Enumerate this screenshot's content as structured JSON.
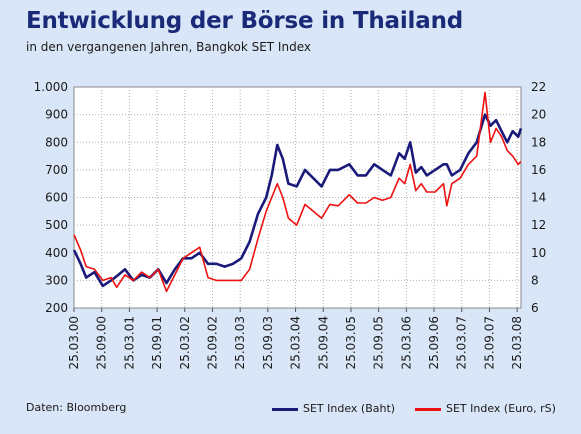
{
  "title": "Entwicklung der Börse in Thailand",
  "subtitle": "in den vergangenen Jahren, Bangkok SET Index",
  "source": "Daten: Bloomberg",
  "colors": {
    "baht": "#1a1a7a",
    "euro": "#ee1111",
    "background": "#d9e6f7",
    "plot": "#ffffff"
  },
  "chart_data": {
    "type": "line",
    "title": "Entwicklung der Börse in Thailand",
    "subtitle": "in den vergangenen Jahren, Bangkok SET Index",
    "xlabel": "",
    "ylabel": "",
    "x_ticks": [
      "25.03.00",
      "25.09.00",
      "25.03.01",
      "25.09.01",
      "25.03.02",
      "25.09.02",
      "25.03.03",
      "25.09.03",
      "25.03.04",
      "25.09.04",
      "25.03.05",
      "25.09.05",
      "25.03.06",
      "25.09.06",
      "25.03.07",
      "25.09.07",
      "25.03.08"
    ],
    "xlim": [
      2000.23,
      2008.3
    ],
    "ylim_left": [
      200,
      1000
    ],
    "ylim_right": [
      6,
      22
    ],
    "y_ticks_left": [
      "200",
      "300",
      "400",
      "500",
      "600",
      "700",
      "800",
      "900",
      "1.000"
    ],
    "y_ticks_right": [
      "6",
      "8",
      "10",
      "12",
      "14",
      "16",
      "18",
      "20",
      "22"
    ],
    "grid": true,
    "legend_position": "bottom-right",
    "series": [
      {
        "name": "SET Index (Baht)",
        "axis": "left",
        "x": [
          2000.23,
          2000.35,
          2000.45,
          2000.6,
          2000.75,
          2000.9,
          2001.0,
          2001.15,
          2001.3,
          2001.45,
          2001.6,
          2001.75,
          2001.9,
          2002.05,
          2002.2,
          2002.35,
          2002.5,
          2002.65,
          2002.8,
          2002.95,
          2003.1,
          2003.25,
          2003.4,
          2003.55,
          2003.7,
          2003.8,
          2003.9,
          2004.0,
          2004.1,
          2004.25,
          2004.4,
          2004.55,
          2004.7,
          2004.85,
          2005.0,
          2005.2,
          2005.35,
          2005.5,
          2005.65,
          2005.8,
          2005.95,
          2006.1,
          2006.2,
          2006.3,
          2006.4,
          2006.5,
          2006.6,
          2006.75,
          2006.9,
          2006.96,
          2007.05,
          2007.2,
          2007.35,
          2007.5,
          2007.65,
          2007.75,
          2007.85,
          2007.95,
          2008.05,
          2008.15,
          2008.25,
          2008.3
        ],
        "values": [
          410,
          360,
          310,
          330,
          280,
          300,
          315,
          340,
          300,
          320,
          310,
          340,
          290,
          340,
          380,
          380,
          400,
          360,
          360,
          350,
          360,
          380,
          440,
          540,
          600,
          680,
          790,
          740,
          650,
          640,
          700,
          670,
          640,
          700,
          700,
          720,
          680,
          680,
          720,
          700,
          680,
          760,
          740,
          800,
          690,
          710,
          680,
          700,
          720,
          720,
          680,
          700,
          760,
          800,
          900,
          860,
          880,
          840,
          800,
          840,
          820,
          850
        ]
      },
      {
        "name": "SET Index (Euro, rS)",
        "axis": "right",
        "x": [
          2000.23,
          2000.35,
          2000.45,
          2000.6,
          2000.75,
          2000.9,
          2001.0,
          2001.15,
          2001.3,
          2001.45,
          2001.6,
          2001.75,
          2001.9,
          2002.05,
          2002.2,
          2002.35,
          2002.5,
          2002.65,
          2002.8,
          2002.95,
          2003.1,
          2003.25,
          2003.4,
          2003.55,
          2003.7,
          2003.8,
          2003.9,
          2004.0,
          2004.1,
          2004.25,
          2004.4,
          2004.55,
          2004.7,
          2004.85,
          2005.0,
          2005.2,
          2005.35,
          2005.5,
          2005.65,
          2005.8,
          2005.95,
          2006.1,
          2006.2,
          2006.3,
          2006.4,
          2006.5,
          2006.6,
          2006.75,
          2006.9,
          2006.96,
          2007.05,
          2007.2,
          2007.35,
          2007.5,
          2007.65,
          2007.75,
          2007.85,
          2007.95,
          2008.05,
          2008.15,
          2008.25,
          2008.3
        ],
        "values": [
          11.3,
          10.2,
          9.0,
          8.8,
          8.0,
          8.2,
          7.5,
          8.4,
          8.0,
          8.6,
          8.2,
          8.8,
          7.2,
          8.4,
          9.6,
          10.0,
          10.4,
          8.2,
          8.0,
          8.0,
          8.0,
          8.0,
          8.8,
          11.0,
          13.0,
          14.0,
          15.0,
          14.0,
          12.5,
          12.0,
          13.5,
          13.0,
          12.5,
          13.5,
          13.4,
          14.2,
          13.6,
          13.6,
          14.0,
          13.8,
          14.0,
          15.4,
          15.0,
          16.4,
          14.5,
          15.0,
          14.4,
          14.4,
          15.0,
          13.4,
          15.0,
          15.4,
          16.4,
          17.0,
          21.6,
          18.0,
          19.0,
          18.4,
          17.4,
          17.0,
          16.4,
          16.6
        ]
      }
    ]
  }
}
